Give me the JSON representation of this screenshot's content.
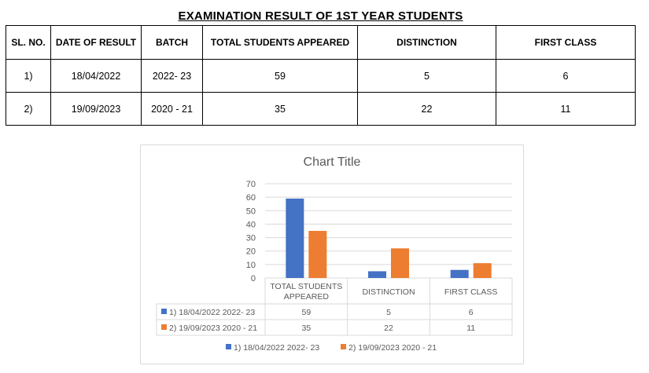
{
  "page_title": "EXAMINATION RESULT OF 1ST YEAR STUDENTS",
  "table": {
    "headers": [
      "SL. NO.",
      "DATE OF RESULT",
      "BATCH",
      "TOTAL STUDENTS APPEARED",
      "DISTINCTION",
      "FIRST CLASS"
    ],
    "rows": [
      [
        "1)",
        "18/04/2022",
        "2022- 23",
        "59",
        "5",
        "6"
      ],
      [
        "2)",
        "19/09/2023",
        "2020 - 21",
        "35",
        "22",
        "11"
      ]
    ]
  },
  "chart_data": {
    "type": "bar",
    "title": "Chart Title",
    "categories": [
      "TOTAL STUDENTS APPEARED",
      "DISTINCTION",
      "FIRST CLASS"
    ],
    "category_lines": [
      [
        "TOTAL STUDENTS",
        "APPEARED"
      ],
      [
        "DISTINCTION"
      ],
      [
        "FIRST CLASS"
      ]
    ],
    "series": [
      {
        "name": "1) 18/04/2022 2022- 23",
        "values": [
          59,
          5,
          6
        ],
        "color": "#4472C4"
      },
      {
        "name": "2) 19/09/2023 2020 - 21",
        "values": [
          35,
          22,
          11
        ],
        "color": "#ED7D31"
      }
    ],
    "ylim": [
      0,
      70
    ],
    "yticks": [
      0,
      10,
      20,
      30,
      40,
      50,
      60,
      70
    ],
    "grid": true,
    "legend": "bottom",
    "data_table": true
  }
}
